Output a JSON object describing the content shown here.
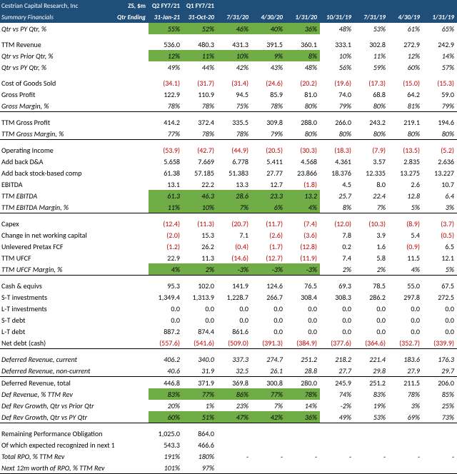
{
  "title1": "Cestrian Capital Research, Inc",
  "title2": "Summary Financials",
  "sym": "ZS, $m",
  "qlabel": "Qtr Ending",
  "periods": [
    "Q2 FY7/21",
    "Q1 FY7/21",
    "",
    "",
    "",
    "",
    "",
    "",
    ""
  ],
  "dates": [
    "31-Jan-21",
    "31-Oct-20",
    "7/31/20",
    "4/30/20",
    "1/31/20",
    "10/31/19",
    "7/31/19",
    "4/30/19",
    "1/31/19"
  ],
  "rows": [
    {
      "l": "Qtr vs PY Qtr, %",
      "hl": 1,
      "it": 1,
      "v": [
        "55%",
        "52%",
        "46%",
        "40%",
        "36%",
        "48%",
        "53%",
        "61%",
        "65%"
      ]
    },
    {
      "sp": 1
    },
    {
      "l": "TTM Revenue",
      "v": [
        "536.0",
        "480.3",
        "431.3",
        "391.5",
        "360.1",
        "333.1",
        "302.8",
        "272.9",
        "242.9"
      ]
    },
    {
      "l": "Qtr vs Prior Qtr, %",
      "hl": 1,
      "it": 1,
      "v": [
        "12%",
        "11%",
        "10%",
        "9%",
        "8%",
        "10%",
        "11%",
        "12%",
        "14%"
      ]
    },
    {
      "l": "Qtr vs PY Qtr, %",
      "it": 1,
      "v": [
        "49%",
        "44%",
        "42%",
        "43%",
        "48%",
        "56%",
        "59%",
        "60%",
        "57%"
      ]
    },
    {
      "sp": 1
    },
    {
      "l": "Cost of Goods Sold",
      "v": [
        "(34.1)",
        "(31.7)",
        "(31.4)",
        "(24.6)",
        "(20.2)",
        "(19.6)",
        "(17.3)",
        "(15.0)",
        "(15.3)"
      ]
    },
    {
      "l": "Gross Profit",
      "v": [
        "122.9",
        "110.9",
        "94.5",
        "85.9",
        "81.0",
        "74.0",
        "68.8",
        "64.2",
        "59.0"
      ]
    },
    {
      "l": "Gross Margin, %",
      "it": 1,
      "bu": 1,
      "v": [
        "78%",
        "78%",
        "75%",
        "78%",
        "80%",
        "79%",
        "80%",
        "81%",
        "79%"
      ]
    },
    {
      "sp": 1
    },
    {
      "l": "TTM Gross Profit",
      "v": [
        "414.2",
        "372.4",
        "335.5",
        "309.8",
        "288.0",
        "266.0",
        "243.2",
        "219.1",
        "194.6"
      ]
    },
    {
      "l": "TTM Gross Margin, %",
      "it": 1,
      "bu": 1,
      "v": [
        "77%",
        "78%",
        "78%",
        "79%",
        "80%",
        "80%",
        "80%",
        "80%",
        "80%"
      ]
    },
    {
      "sp": 1
    },
    {
      "l": "Operating Income",
      "v": [
        "(53.9)",
        "(42.7)",
        "(44.9)",
        "(20.5)",
        "(30.3)",
        "(18.3)",
        "(7.9)",
        "(13.5)",
        "(5.2)"
      ]
    },
    {
      "l": "Add back D&A",
      "v": [
        "5.658",
        "7.669",
        "6.778",
        "5.411",
        "4.568",
        "4.361",
        "3.57",
        "2.835",
        "2.636"
      ]
    },
    {
      "l": "Add back stock-based comp",
      "v": [
        "61.38",
        "57.185",
        "51.383",
        "27.77",
        "23.866",
        "18.376",
        "12.335",
        "13.275",
        "13.227"
      ]
    },
    {
      "l": "EBITDA",
      "v": [
        "13.1",
        "22.2",
        "13.3",
        "12.7",
        "(1.8)",
        "4.5",
        "8.0",
        "2.6",
        "10.7"
      ]
    },
    {
      "l": "TTM EBITDA",
      "hl": 1,
      "it": 1,
      "v": [
        "61.3",
        "46.3",
        "28.6",
        "23.3",
        "13.2",
        "25.7",
        "22.4",
        "12.8",
        "6.4"
      ]
    },
    {
      "l": "TTM EBITDA Margin, %",
      "hl": 1,
      "it": 1,
      "bu": 1,
      "v": [
        "11%",
        "10%",
        "7%",
        "6%",
        "4%",
        "8%",
        "7%",
        "5%",
        "3%"
      ]
    },
    {
      "sp": 1
    },
    {
      "l": "Capex",
      "v": [
        "(12.4)",
        "(11.3)",
        "(20.7)",
        "(11.7)",
        "(7.4)",
        "(12.0)",
        "(10.3)",
        "(8.9)",
        "(3.7)"
      ]
    },
    {
      "l": "Change in net working capital",
      "v": [
        "(2.0)",
        "15.3",
        "7.1",
        "(2.6)",
        "(3.6)",
        "7.8",
        "3.9",
        "5.4",
        "(0.5)"
      ]
    },
    {
      "l": "Unlevered Pretax FCF",
      "v": [
        "(1.2)",
        "26.2",
        "(0.4)",
        "(1.7)",
        "(12.8)",
        "0.2",
        "1.6",
        "(0.9)",
        "6.5"
      ]
    },
    {
      "l": "TTM UFCF",
      "v": [
        "22.9",
        "11.3",
        "(14.6)",
        "(12.7)",
        "(11.9)",
        "7.4",
        "5.8",
        "11.5",
        "12.1"
      ]
    },
    {
      "l": "TTM UFCF Margin, %",
      "hl": 1,
      "it": 1,
      "bu": 1,
      "v": [
        "4%",
        "2%",
        "-3%",
        "-3%",
        "-3%",
        "2%",
        "2%",
        "4%",
        "5%"
      ]
    },
    {
      "sp": 1
    },
    {
      "l": "Cash & equivs",
      "v": [
        "95.3",
        "102.0",
        "141.9",
        "124.6",
        "76.5",
        "69.3",
        "78.5",
        "55.0",
        "67.5"
      ]
    },
    {
      "l": "S-T investments",
      "v": [
        "1,349.4",
        "1,313.9",
        "1,228.7",
        "266.7",
        "308.4",
        "308.3",
        "286.2",
        "297.8",
        "272.5"
      ]
    },
    {
      "l": "L-T investments",
      "v": [
        "0.0",
        "0.0",
        "0.0",
        "0.0",
        "0.0",
        "0.0",
        "0.0",
        "0.0",
        "0.0"
      ]
    },
    {
      "l": "S-T debt",
      "v": [
        "0.0",
        "0.0",
        "0.0",
        "0.0",
        "0.0",
        "0.0",
        "0.0",
        "0.0",
        "0.0"
      ]
    },
    {
      "l": "L-T debt",
      "v": [
        "887.2",
        "874.4",
        "861.6",
        "0.0",
        "0.0",
        "0.0",
        "0.0",
        "0.0",
        "0.0"
      ]
    },
    {
      "l": "Net debt (cash)",
      "bu": 1,
      "v": [
        "(557.6)",
        "(541.6)",
        "(509.0)",
        "(391.3)",
        "(384.9)",
        "(377.6)",
        "(364.6)",
        "(352.7)",
        "(339.9)"
      ]
    },
    {
      "sp": 1
    },
    {
      "l": "Deferred Revenue, current",
      "it": 1,
      "v": [
        "406.2",
        "340.0",
        "337.3",
        "274.7",
        "251.2",
        "218.2",
        "221.4",
        "183.6",
        "176.3"
      ]
    },
    {
      "l": "Deferred Revenue, non-current",
      "it": 1,
      "bu": 1,
      "v": [
        "40.6",
        "31.9",
        "32.5",
        "26.1",
        "28.8",
        "27.7",
        "29.8",
        "27.9",
        "29.7"
      ]
    },
    {
      "l": "Deferred Revenue, total",
      "v": [
        "446.8",
        "371.9",
        "369.8",
        "300.8",
        "280.0",
        "245.9",
        "251.2",
        "211.5",
        "206.0"
      ]
    },
    {
      "l": "Def Revenue, % TTM Rev",
      "hl": 1,
      "it": 1,
      "v": [
        "83%",
        "77%",
        "86%",
        "77%",
        "78%",
        "74%",
        "83%",
        "78%",
        "85%"
      ]
    },
    {
      "l": "Def Rev Growth, Qtr vs Prior Qtr",
      "it": 1,
      "v": [
        "20%",
        "1%",
        "23%",
        "7%",
        "14%",
        "-2%",
        "19%",
        "3%",
        "25%"
      ]
    },
    {
      "l": "Def Rev Growth, Qtr vs PY Qtr",
      "hl": 1,
      "it": 1,
      "bu": 1,
      "v": [
        "60%",
        "51%",
        "47%",
        "42%",
        "36%",
        "49%",
        "53%",
        "69%",
        "73%"
      ]
    },
    {
      "sp": 1
    },
    {
      "l": "Remaining Performance Obligation",
      "v": [
        "1,025.0",
        "864.0",
        "",
        "",
        "",
        "",
        "",
        "",
        ""
      ]
    },
    {
      "l": "Of which expected recognized in next 12m",
      "v": [
        "543.3",
        "466.6",
        "",
        "",
        "",
        "",
        "",
        "",
        ""
      ]
    },
    {
      "l": "Total RPO, % TTM Rev",
      "it": 1,
      "v": [
        "191%",
        "180%",
        "-",
        "-",
        "-",
        "-",
        "-",
        "-",
        "-"
      ]
    },
    {
      "l": "Next 12m worth of RPO, % TTM Rev",
      "it": 1,
      "bu": 1,
      "v": [
        "101%",
        "97%",
        "",
        "",
        "",
        "",
        "",
        "",
        ""
      ]
    }
  ]
}
